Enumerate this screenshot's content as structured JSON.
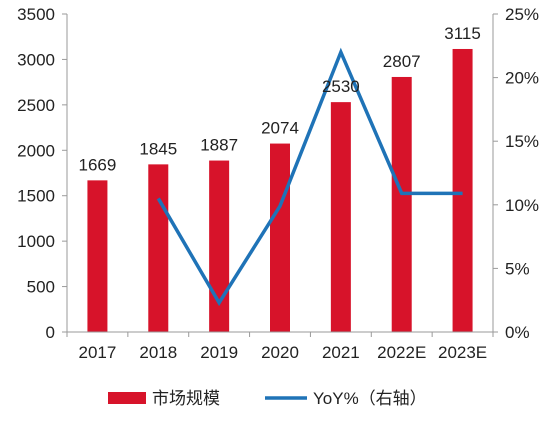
{
  "chart_data": {
    "type": "bar",
    "categories": [
      "2017",
      "2018",
      "2019",
      "2020",
      "2021",
      "2022E",
      "2023E"
    ],
    "series": [
      {
        "name": "市场规模",
        "type": "bar",
        "axis": "left",
        "values": [
          1669,
          1845,
          1887,
          2074,
          2530,
          2807,
          3115
        ],
        "color": "#d7132a"
      },
      {
        "name": "YoY%（右轴）",
        "type": "line",
        "axis": "right",
        "values": [
          null,
          10.5,
          2.3,
          9.9,
          22.0,
          10.9,
          10.9
        ],
        "color": "#1f73b7"
      }
    ],
    "data_labels": [
      "1669",
      "1845",
      "1887",
      "2074",
      "2530",
      "2807",
      "3115"
    ],
    "y_left": {
      "ylim": [
        0,
        3500
      ],
      "ticks": [
        "0",
        "500",
        "1000",
        "1500",
        "2000",
        "2500",
        "3000",
        "3500"
      ]
    },
    "y_right": {
      "ylim": [
        0,
        25
      ],
      "ticks": [
        "0%",
        "5%",
        "10%",
        "15%",
        "20%",
        "25%"
      ]
    },
    "legend": {
      "placement": "bottom",
      "items": [
        "市场规模",
        "YoY%（右轴）"
      ]
    },
    "grid": false
  }
}
